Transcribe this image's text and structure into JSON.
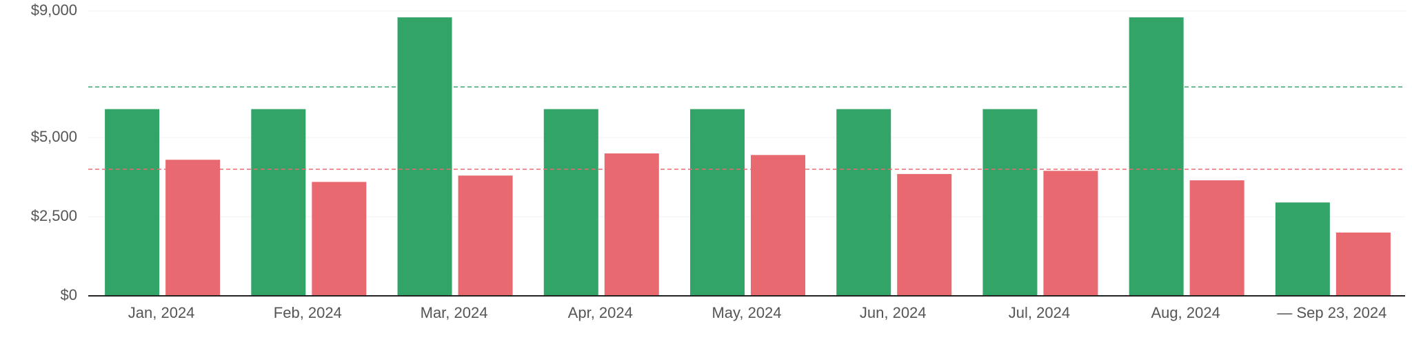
{
  "chart_data": {
    "type": "bar",
    "categories": [
      "Jan, 2024",
      "Feb, 2024",
      "Mar, 2024",
      "Apr, 2024",
      "May, 2024",
      "Jun, 2024",
      "Jul, 2024",
      "Aug, 2024",
      "— Sep 23, 2024"
    ],
    "series": [
      {
        "color": "#33a467",
        "values": [
          5900,
          5900,
          8800,
          5900,
          5900,
          5900,
          5900,
          8800,
          2950
        ]
      },
      {
        "color": "#e86a70",
        "values": [
          4300,
          3600,
          3800,
          4500,
          4450,
          3850,
          3950,
          3650,
          2000
        ]
      }
    ],
    "reference_lines": [
      {
        "color": "#33a467",
        "value": 6600
      },
      {
        "color": "#e86a70",
        "value": 4000
      }
    ],
    "ylim": [
      0,
      9000
    ],
    "yticks": [
      {
        "value": 0,
        "label": "$0"
      },
      {
        "value": 2500,
        "label": "$2,500"
      },
      {
        "value": 5000,
        "label": "$5,000"
      },
      {
        "value": 9000,
        "label": "$9,000"
      }
    ],
    "grid": true
  }
}
